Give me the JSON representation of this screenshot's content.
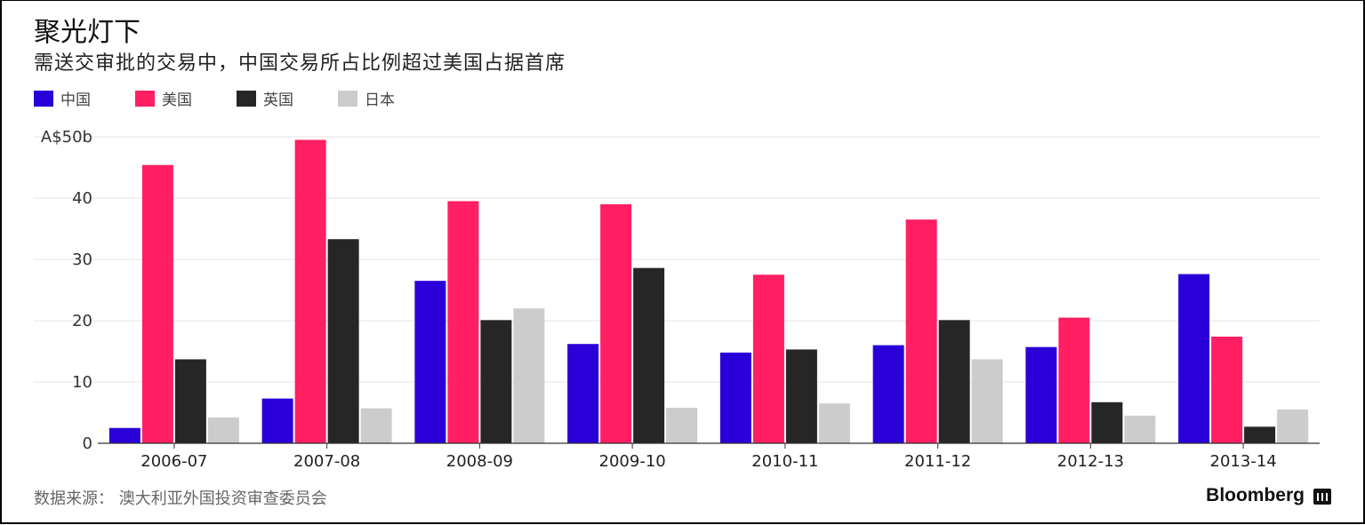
{
  "header": {
    "title": "聚光灯下",
    "subtitle": "需送交审批的交易中，中国交易所占比例超过美国占据首席"
  },
  "footer": {
    "source": "数据来源： 澳大利亚外国投资审查委员会",
    "brand": "Bloomberg"
  },
  "chart_data": {
    "type": "bar",
    "categories": [
      "2006-07",
      "2007-08",
      "2008-09",
      "2009-10",
      "2010-11",
      "2011-12",
      "2012-13",
      "2013-14"
    ],
    "series": [
      {
        "name": "中国",
        "color": "#2a00d8",
        "values": [
          2.5,
          7.3,
          26.5,
          16.2,
          14.8,
          16.0,
          15.7,
          27.6
        ]
      },
      {
        "name": "美国",
        "color": "#ff1f62",
        "values": [
          45.4,
          49.5,
          39.5,
          39.0,
          27.5,
          36.5,
          20.5,
          17.4
        ]
      },
      {
        "name": "英国",
        "color": "#262626",
        "values": [
          13.7,
          33.3,
          20.1,
          28.6,
          15.3,
          20.1,
          6.7,
          2.7
        ]
      },
      {
        "name": "日本",
        "color": "#cccccc",
        "values": [
          4.2,
          5.7,
          22.0,
          5.8,
          6.5,
          13.7,
          4.5,
          5.5
        ]
      }
    ],
    "ylim": [
      0,
      50
    ],
    "yticks": [
      0,
      10,
      20,
      30,
      40,
      50
    ],
    "ytick_labels": [
      "0",
      "10",
      "20",
      "30",
      "40",
      "A$50b"
    ],
    "grid": true,
    "legend_position": "top-left"
  }
}
